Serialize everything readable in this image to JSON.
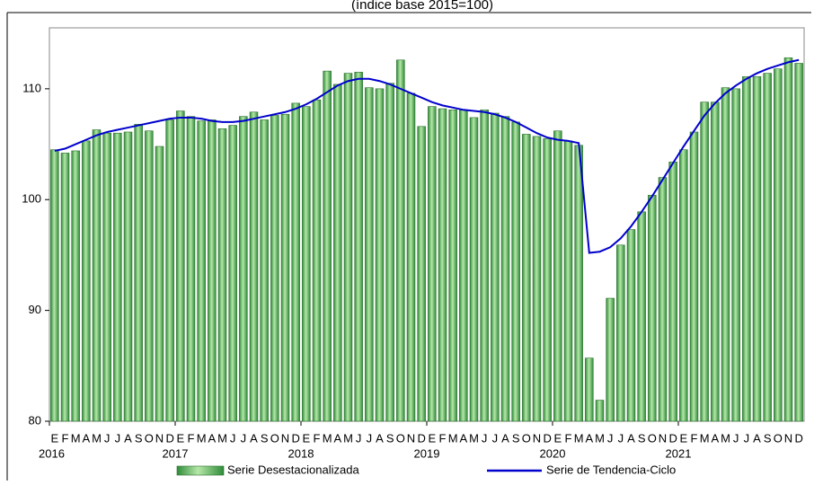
{
  "chart_data": {
    "type": "bar",
    "subtitle": "(índice base 2015=100)",
    "categories": [
      "E",
      "F",
      "M",
      "A",
      "M",
      "J",
      "J",
      "A",
      "S",
      "O",
      "N",
      "D",
      "E",
      "F",
      "M",
      "A",
      "M",
      "J",
      "J",
      "A",
      "S",
      "O",
      "N",
      "D",
      "E",
      "F",
      "M",
      "A",
      "M",
      "J",
      "J",
      "A",
      "S",
      "O",
      "N",
      "D",
      "E",
      "F",
      "M",
      "A",
      "M",
      "J",
      "J",
      "A",
      "S",
      "O",
      "N",
      "D",
      "E",
      "F",
      "M",
      "A",
      "M",
      "J",
      "J",
      "A",
      "S",
      "O",
      "N",
      "D",
      "E",
      "F",
      "M",
      "A",
      "M",
      "J",
      "J",
      "A",
      "S",
      "O",
      "N",
      "D"
    ],
    "year_labels": [
      "2016",
      "2017",
      "2018",
      "2019",
      "2020",
      "2021"
    ],
    "series": [
      {
        "name": "Serie Desestacionalizada",
        "type": "bar",
        "color": "#4caf50",
        "values": [
          104.5,
          104.2,
          104.4,
          105.3,
          106.3,
          106.0,
          106.0,
          106.1,
          106.8,
          106.2,
          104.8,
          107.2,
          108.0,
          107.5,
          107.1,
          107.2,
          106.4,
          106.7,
          107.5,
          107.9,
          107.2,
          107.6,
          107.7,
          108.7,
          108.4,
          109.0,
          111.6,
          110.4,
          111.4,
          111.5,
          110.1,
          110.0,
          110.5,
          112.6,
          109.6,
          106.6,
          108.4,
          108.2,
          108.1,
          108.1,
          107.4,
          108.1,
          107.8,
          107.5,
          107.0,
          105.9,
          105.7,
          105.5,
          106.2,
          105.3,
          104.9,
          85.7,
          81.9,
          91.1,
          95.9,
          97.3,
          98.9,
          100.4,
          102.0,
          103.4,
          104.5,
          106.1,
          108.8,
          108.8,
          110.1,
          110.0,
          111.1,
          111.1,
          111.4,
          111.8,
          112.8,
          112.3
        ]
      },
      {
        "name": "Serie de Tendencia-Ciclo",
        "type": "line",
        "color": "#0000cc",
        "values": [
          104.4,
          104.6,
          105.0,
          105.4,
          105.8,
          106.1,
          106.3,
          106.5,
          106.7,
          106.9,
          107.1,
          107.3,
          107.4,
          107.4,
          107.3,
          107.1,
          107.0,
          107.0,
          107.1,
          107.3,
          107.5,
          107.7,
          107.9,
          108.2,
          108.6,
          109.1,
          109.7,
          110.3,
          110.7,
          110.9,
          110.9,
          110.7,
          110.4,
          110.0,
          109.6,
          109.2,
          108.8,
          108.5,
          108.3,
          108.1,
          108.0,
          107.9,
          107.7,
          107.4,
          107.0,
          106.5,
          106.0,
          105.6,
          105.4,
          105.3,
          105.1,
          95.2,
          95.3,
          95.7,
          96.5,
          97.6,
          98.9,
          100.3,
          101.8,
          103.3,
          104.8,
          106.2,
          107.6,
          108.7,
          109.6,
          110.3,
          110.9,
          111.4,
          111.8,
          112.1,
          112.4,
          112.6
        ]
      }
    ],
    "ylim": [
      80,
      115.5
    ],
    "yticks": [
      80,
      90,
      100,
      110
    ]
  }
}
